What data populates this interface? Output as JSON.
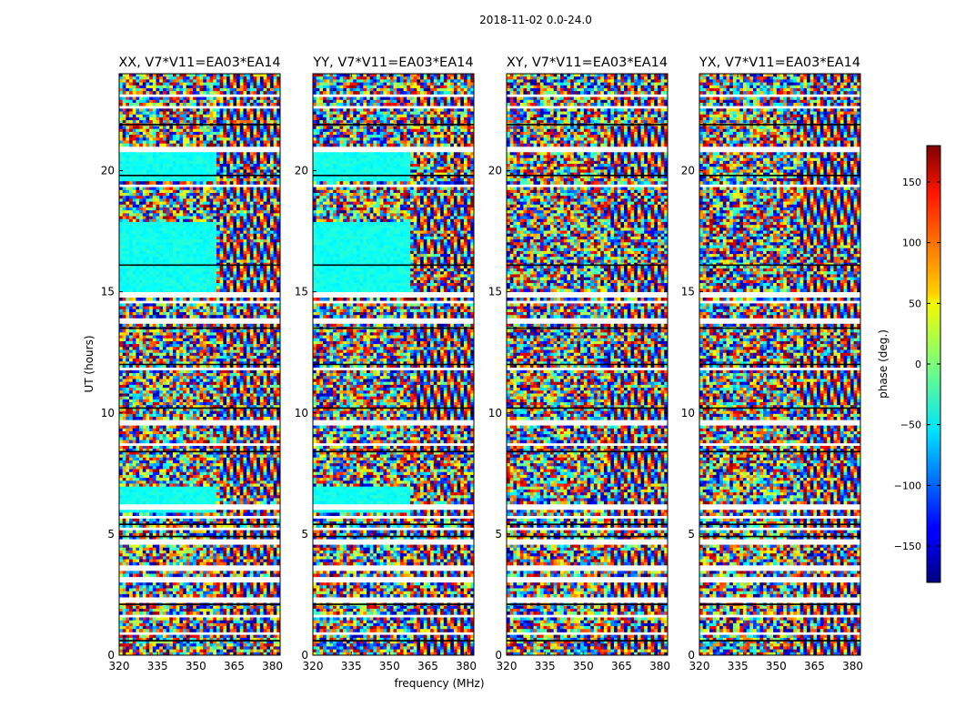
{
  "figure": {
    "suptitle": "2018-11-02 0.0-24.0",
    "xlabel": "frequency (MHz)",
    "ylabel": "UT (hours)",
    "colorbar_label": "phase (deg.)",
    "colorbar_ticks": [
      150,
      100,
      50,
      0,
      -50,
      -100,
      -150
    ],
    "colorbar_range": [
      -180,
      180
    ]
  },
  "chart_data": [
    {
      "type": "heatmap",
      "title": "XX, V7*V11=EA03*EA14",
      "xlabel": "frequency (MHz)",
      "ylabel": "UT (hours)",
      "xlim": [
        320,
        383
      ],
      "ylim": [
        0,
        24
      ],
      "xticks": [
        320,
        335,
        350,
        365,
        380
      ],
      "yticks": [
        0,
        5,
        10,
        15,
        20
      ],
      "value_name": "phase (deg.)",
      "zlim": [
        -180,
        180
      ]
    },
    {
      "type": "heatmap",
      "title": "YY, V7*V11=EA03*EA14",
      "xlabel": "frequency (MHz)",
      "ylabel": "UT (hours)",
      "xlim": [
        320,
        383
      ],
      "ylim": [
        0,
        24
      ],
      "xticks": [
        320,
        335,
        350,
        365,
        380
      ],
      "yticks": [
        0,
        5,
        10,
        15,
        20
      ],
      "value_name": "phase (deg.)",
      "zlim": [
        -180,
        180
      ]
    },
    {
      "type": "heatmap",
      "title": "XY, V7*V11=EA03*EA14",
      "xlabel": "frequency (MHz)",
      "ylabel": "UT (hours)",
      "xlim": [
        320,
        383
      ],
      "ylim": [
        0,
        24
      ],
      "xticks": [
        320,
        335,
        350,
        365,
        380
      ],
      "yticks": [
        0,
        5,
        10,
        15,
        20
      ],
      "value_name": "phase (deg.)",
      "zlim": [
        -180,
        180
      ]
    },
    {
      "type": "heatmap",
      "title": "YX, V7*V11=EA03*EA14",
      "xlabel": "frequency (MHz)",
      "ylabel": "UT (hours)",
      "xlim": [
        320,
        383
      ],
      "ylim": [
        0,
        24
      ],
      "xticks": [
        320,
        335,
        350,
        365,
        380
      ],
      "yticks": [
        0,
        5,
        10,
        15,
        20
      ],
      "value_name": "phase (deg.)",
      "zlim": [
        -180,
        180
      ]
    }
  ]
}
